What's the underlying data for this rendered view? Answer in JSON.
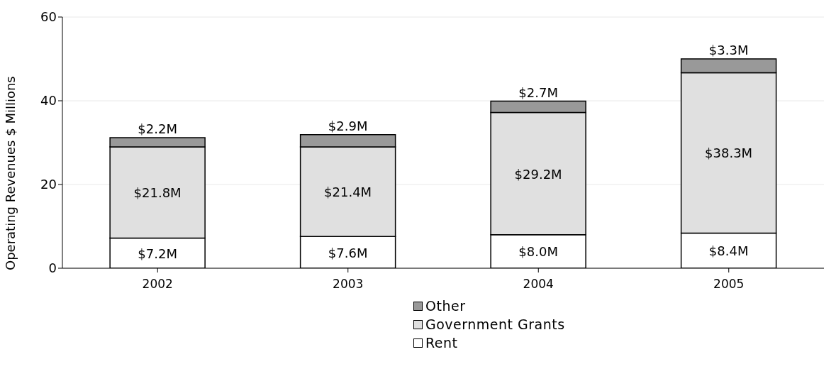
{
  "chart_data": {
    "type": "bar",
    "stacked": true,
    "ylabel": "Operating Revenues $ Millions",
    "categories": [
      "2002",
      "2003",
      "2004",
      "2005"
    ],
    "ylim": [
      0,
      60
    ],
    "yticks": [
      0,
      20,
      40,
      60
    ],
    "grid": "y",
    "legend": "bottom",
    "series": [
      {
        "name": "Rent",
        "color": "#ffffff",
        "values": [
          7.2,
          7.6,
          8.0,
          8.4
        ],
        "value_labels": [
          "$7.2M",
          "$7.6M",
          "$8.0M",
          "$8.4M"
        ]
      },
      {
        "name": "Government Grants",
        "color": "#e0e0e0",
        "values": [
          21.8,
          21.4,
          29.2,
          38.3
        ],
        "value_labels": [
          "$21.8M",
          "$21.4M",
          "$29.2M",
          "$38.3M"
        ]
      },
      {
        "name": "Other",
        "color": "#999999",
        "values": [
          2.2,
          2.9,
          2.7,
          3.3
        ],
        "value_labels": [
          "$2.2M",
          "$2.9M",
          "$2.7M",
          "$3.3M"
        ]
      }
    ]
  }
}
